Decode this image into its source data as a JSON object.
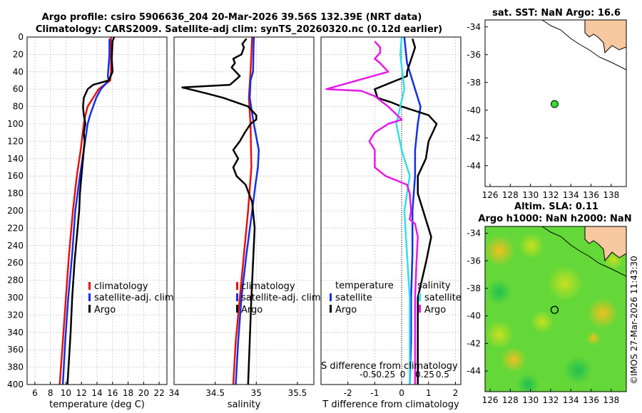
{
  "title_line1": "Argo profile: csiro 5906636_204 20-Mar-2026 39.56S 132.39E (NRT data)",
  "title_line2": "Climatology: CARS2009. Satellite-adj clim: synTS_20260320.nc (0.12d earlier)",
  "depth_ticks": [
    "0",
    "20",
    "40",
    "60",
    "80",
    "100",
    "120",
    "140",
    "160",
    "180",
    "200",
    "220",
    "240",
    "260",
    "280",
    "300",
    "320",
    "340",
    "360",
    "380",
    "400"
  ],
  "colors": {
    "climatology": "#e8100c",
    "satellite": "#1030e8",
    "argo": "#000000",
    "salinity_diff": "#e818e8",
    "salinity_sat": "#30e0e8",
    "land": "#f8c8a0"
  },
  "chart_data": [
    {
      "type": "line",
      "id": "temperature",
      "xlabel": "temperature (deg C)",
      "xlim": [
        5,
        23
      ],
      "ylim": [
        0,
        400
      ],
      "xtick_values": [
        6,
        8,
        10,
        12,
        14,
        16,
        18,
        20,
        22
      ],
      "xtick_labels": [
        "6",
        "8",
        "10",
        "12",
        "14",
        "16",
        "18",
        "20",
        "22"
      ],
      "legend": [
        "climatology",
        "satellite-adj. clim",
        "Argo"
      ],
      "series": [
        {
          "name": "climatology",
          "depth": [
            0,
            40,
            50,
            60,
            70,
            80,
            90,
            100,
            130,
            160,
            200,
            250,
            300,
            350,
            400
          ],
          "values": [
            15.8,
            15.8,
            15.7,
            14.2,
            13.5,
            12.8,
            12.5,
            12.3,
            11.9,
            11.4,
            10.9,
            10.4,
            10.0,
            9.6,
            9.2
          ]
        },
        {
          "name": "satellite-adj. clim",
          "depth": [
            2,
            20,
            45,
            50,
            60,
            70,
            80,
            90,
            100,
            130,
            160,
            200,
            250,
            300,
            350,
            400
          ],
          "values": [
            15.6,
            15.6,
            15.4,
            15.5,
            14.5,
            13.9,
            13.5,
            13.1,
            12.8,
            12.3,
            11.8,
            11.2,
            10.8,
            10.3,
            9.9,
            9.6
          ]
        },
        {
          "name": "Argo",
          "depth": [
            0,
            5,
            25,
            40,
            50,
            55,
            60,
            70,
            80,
            90,
            100,
            110,
            120,
            140,
            160,
            180,
            200,
            230,
            260,
            300,
            340,
            370,
            400
          ],
          "values": [
            16.2,
            16.0,
            15.9,
            16.0,
            15.5,
            13.5,
            12.8,
            12.3,
            12.2,
            12.3,
            12.5,
            12.3,
            12.4,
            12.2,
            12.0,
            11.8,
            11.7,
            11.4,
            11.1,
            10.8,
            10.6,
            10.4,
            10.2
          ]
        }
      ]
    },
    {
      "type": "line",
      "id": "salinity",
      "xlabel": "salinity",
      "xlim": [
        34,
        35.7
      ],
      "ylim": [
        0,
        400
      ],
      "xtick_values": [
        34,
        34.5,
        35,
        35.5
      ],
      "xtick_labels": [
        "34",
        "34.5",
        "35",
        "35.5"
      ],
      "legend": [
        "climatology",
        "satellite-adj. clim",
        "Argo"
      ],
      "series": [
        {
          "name": "climatology",
          "depth": [
            0,
            40,
            70,
            100,
            150,
            200,
            250,
            300,
            350,
            400
          ],
          "values": [
            34.95,
            34.93,
            34.91,
            34.93,
            34.94,
            34.9,
            34.85,
            34.8,
            34.75,
            34.72
          ]
        },
        {
          "name": "satellite-adj. clim",
          "depth": [
            0,
            40,
            50,
            70,
            100,
            130,
            150,
            170,
            200,
            250,
            300,
            350,
            400
          ],
          "values": [
            34.97,
            34.96,
            34.93,
            34.92,
            34.97,
            35.03,
            35.02,
            34.99,
            34.95,
            34.88,
            34.82,
            34.78,
            34.75
          ]
        },
        {
          "name": "Argo",
          "depth": [
            2,
            8,
            12,
            20,
            25,
            30,
            35,
            40,
            45,
            55,
            58,
            65,
            70,
            80,
            90,
            95,
            100,
            110,
            120,
            130,
            140,
            150,
            160,
            170,
            190,
            220,
            260,
            300,
            350,
            400
          ],
          "values": [
            34.88,
            34.83,
            34.85,
            34.82,
            34.72,
            34.74,
            34.7,
            34.75,
            34.8,
            34.68,
            34.1,
            34.4,
            34.6,
            34.9,
            35.0,
            35.0,
            34.93,
            34.86,
            34.8,
            34.72,
            34.78,
            34.72,
            34.76,
            34.87,
            34.95,
            34.98,
            34.96,
            34.94,
            34.92,
            34.9
          ]
        }
      ]
    },
    {
      "type": "line",
      "id": "difference",
      "xlabel": "T difference from climatology",
      "xlabel_top": "S difference from climatology",
      "xlim": [
        -3,
        2.2
      ],
      "ylim": [
        0,
        400
      ],
      "xtick_values": [
        -2,
        -1,
        0,
        1,
        2
      ],
      "xtick_labels": [
        "-2",
        "-1",
        "0",
        "1",
        "2"
      ],
      "xtick_top_values": [
        -1.25,
        -0.65,
        0.04,
        0.86,
        1.52
      ],
      "xtick_top_labels": [
        "-0.5",
        "-0.25",
        "0",
        "0.25",
        "0.5"
      ],
      "legend_temperature_title": "temperature",
      "legend_salinity_title": "salinity",
      "legend_temperature": [
        "satellite",
        "Argo"
      ],
      "legend_salinity": [
        "satellite",
        "Argo"
      ],
      "series": [
        {
          "name": "temperature satellite",
          "depth": [
            0,
            30,
            60,
            80,
            100,
            130,
            160,
            200,
            250,
            300,
            350,
            400
          ],
          "values": [
            0.1,
            0.2,
            0.5,
            0.7,
            0.6,
            0.5,
            0.5,
            0.4,
            0.4,
            0.35,
            0.35,
            0.3
          ]
        },
        {
          "name": "temperature Argo",
          "depth": [
            2,
            12,
            40,
            45,
            60,
            70,
            75,
            80,
            90,
            100,
            120,
            140,
            160,
            180,
            200,
            230,
            260,
            300,
            350,
            400
          ],
          "values": [
            0.4,
            0.5,
            0.2,
            0.2,
            -1.0,
            -0.9,
            -0.4,
            0.0,
            1.0,
            1.3,
            1.0,
            0.9,
            0.6,
            0.6,
            0.8,
            1.1,
            0.9,
            0.6,
            0.6,
            0.6
          ]
        },
        {
          "name": "salinity satellite",
          "depth": [
            0,
            20,
            60,
            100,
            130,
            160,
            200,
            250,
            300,
            350,
            400
          ],
          "values": [
            0.0,
            -0.05,
            0.1,
            -0.2,
            0.0,
            0.3,
            0.1,
            0.2,
            0.3,
            0.3,
            0.3
          ]
        },
        {
          "name": "salinity Argo",
          "depth": [
            5,
            12,
            18,
            25,
            30,
            40,
            60,
            62,
            68,
            80,
            95,
            100,
            110,
            120,
            130,
            140,
            150,
            160,
            170,
            180,
            200,
            210,
            215,
            230,
            260,
            300,
            350,
            400
          ],
          "values": [
            -1.0,
            -0.8,
            -0.8,
            -1.0,
            -0.8,
            -0.5,
            -2.8,
            -1.5,
            -1.0,
            -0.5,
            0.0,
            -0.5,
            -1.0,
            -1.2,
            -1.0,
            -1.0,
            -1.0,
            -0.6,
            0.2,
            0.3,
            0.35,
            0.3,
            0.5,
            0.6,
            0.55,
            0.5,
            0.5,
            0.5
          ]
        }
      ]
    }
  ],
  "maps": {
    "sst_title": "sat. SST: NaN Argo: 16.6",
    "altim_title1": "Altim. SLA: 0.11",
    "altim_title2": "Argo h1000: NaN h2000: NaN",
    "lon_range": [
      125.5,
      139.5
    ],
    "lat_range": [
      -45.5,
      -33.5
    ],
    "lon_ticks": [
      "126",
      "128",
      "130",
      "132",
      "134",
      "136",
      "138"
    ],
    "lat_ticks": [
      "-34",
      "-36",
      "-38",
      "-40",
      "-42",
      "-44"
    ],
    "argo_lon": 132.39,
    "argo_lat": -39.56,
    "copyright": "©IMOS 27-Mar-2026 11:43:30"
  }
}
